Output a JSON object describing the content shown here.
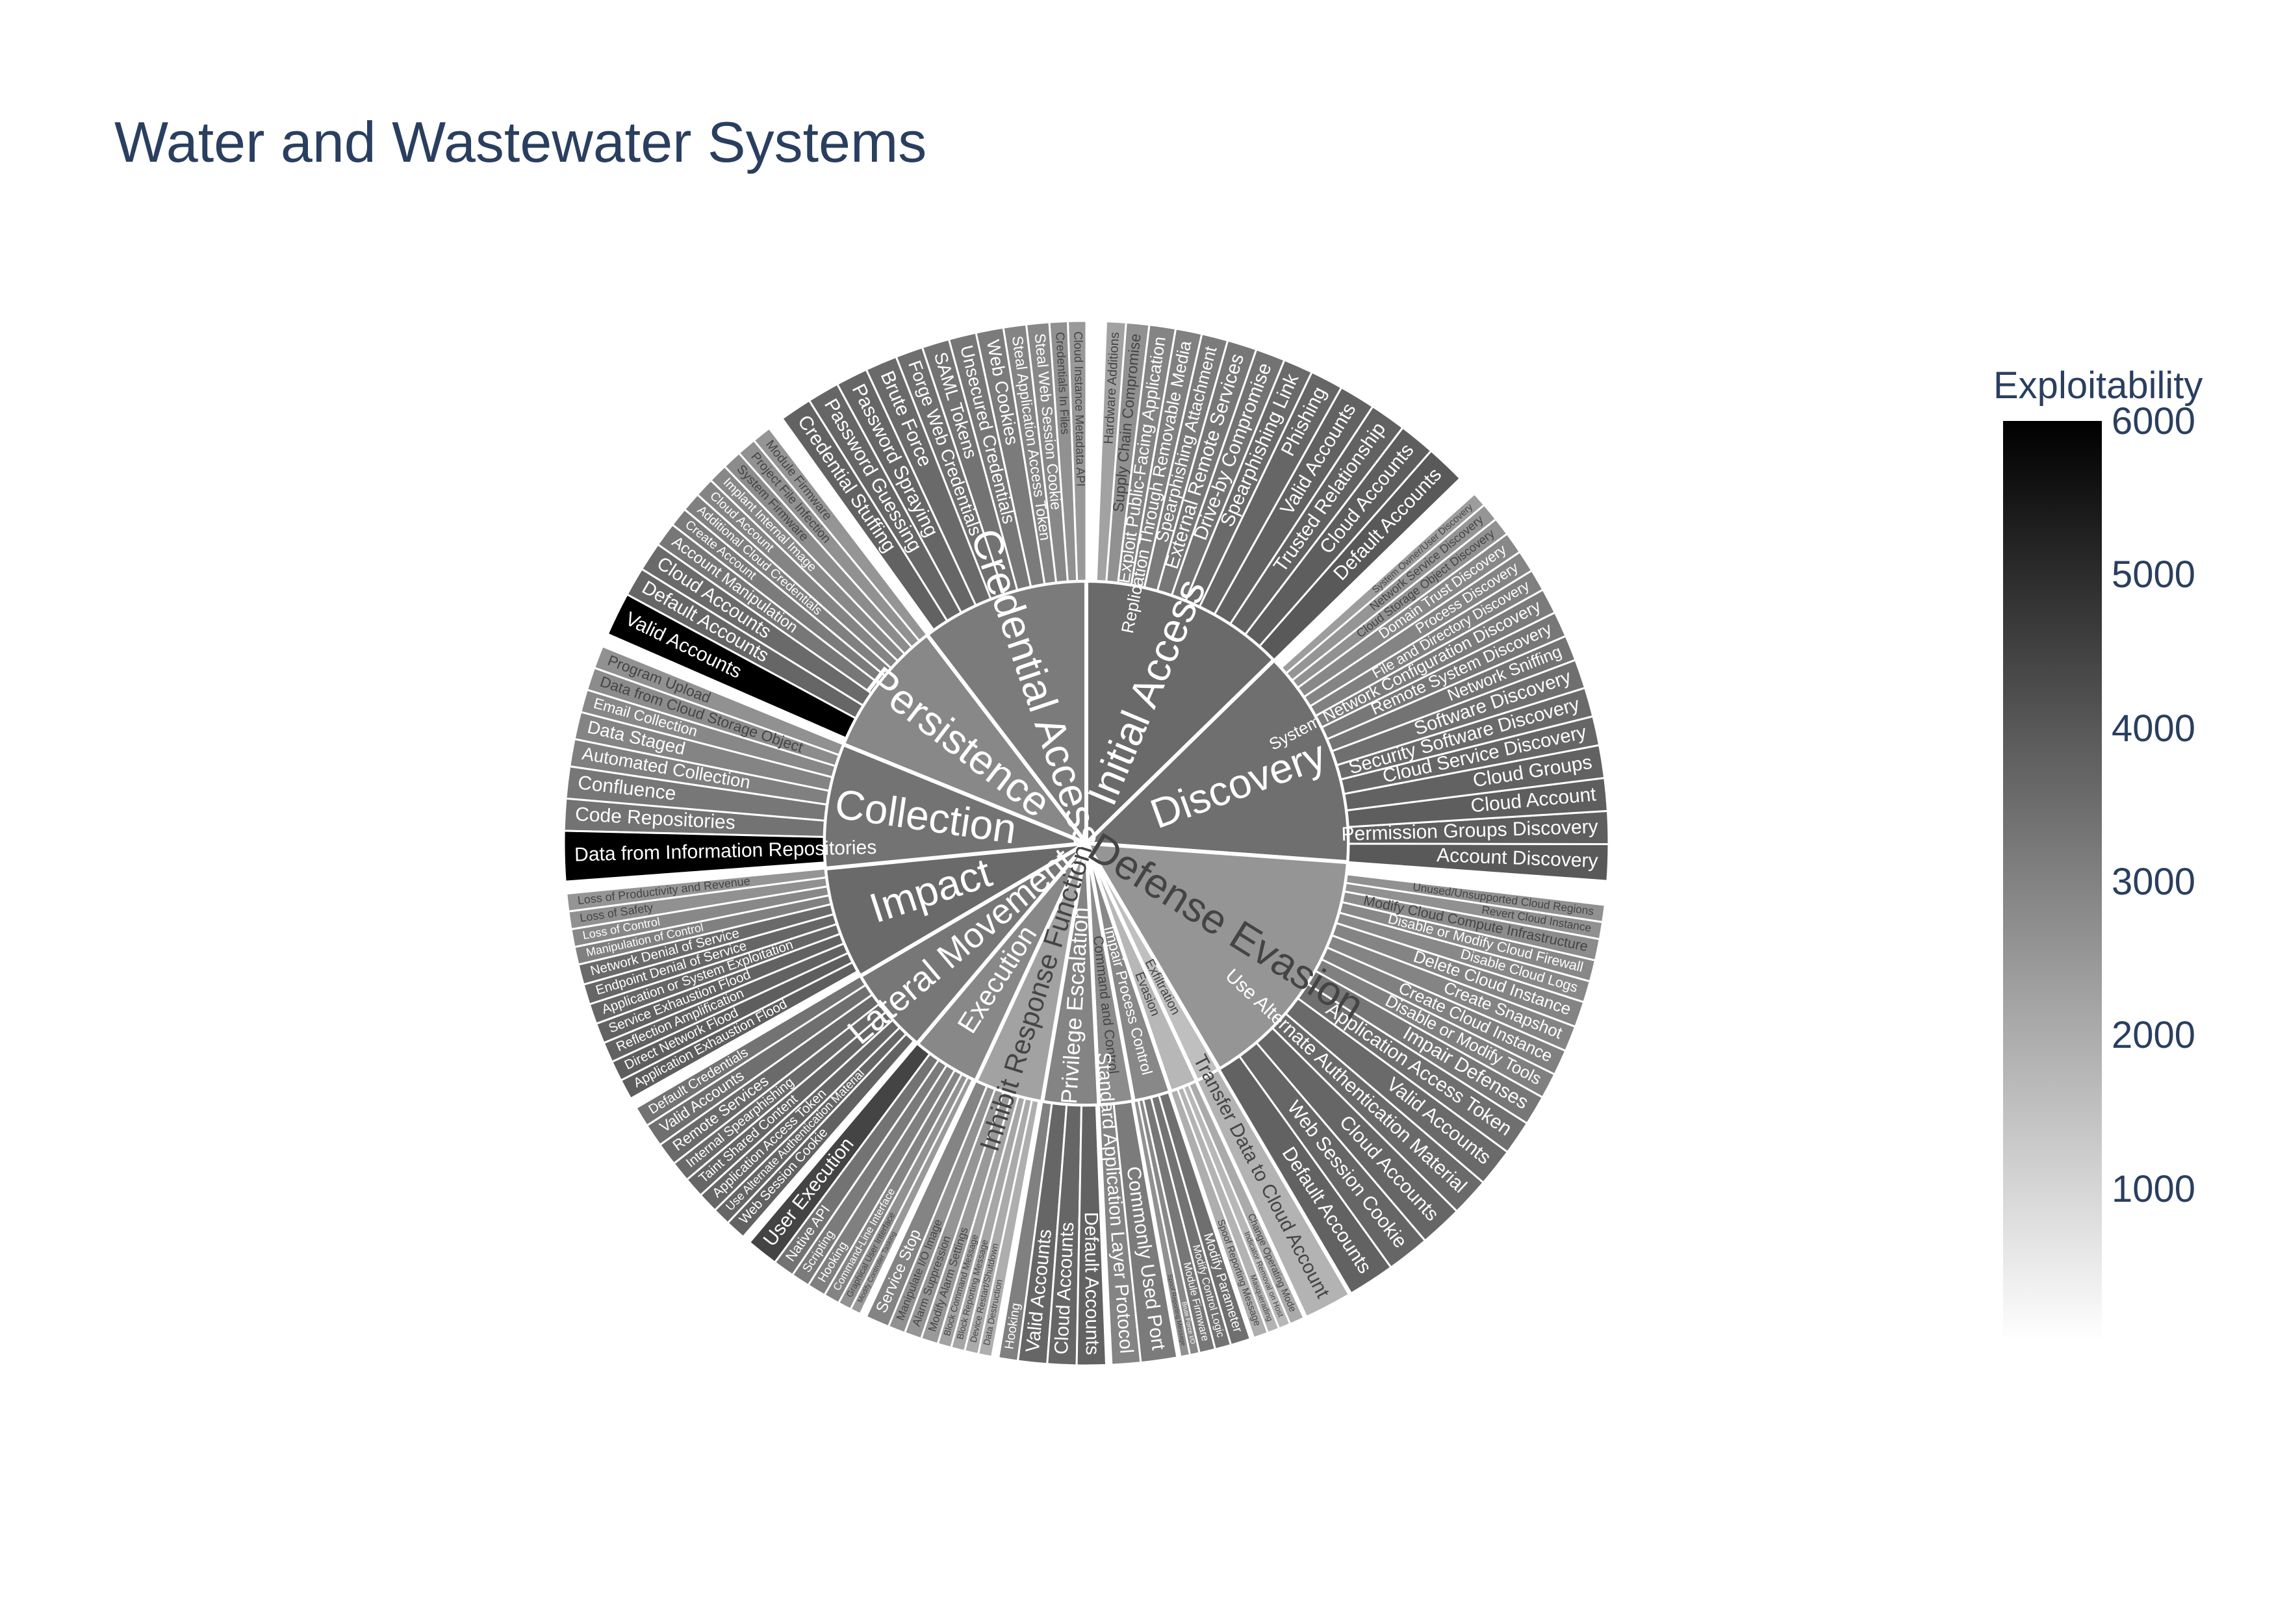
{
  "title": "Water and Wastewater Systems",
  "colorbar": {
    "title": "Exploitability",
    "range": [
      0,
      6000
    ],
    "colorscale": [
      "#ffffff",
      "#000000"
    ],
    "ticks": [
      6000,
      5000,
      4000,
      3000,
      2000,
      1000
    ]
  },
  "chart_data": {
    "type": "sunburst",
    "title": "Water and Wastewater Systems",
    "colorbar_title": "Exploitability",
    "tactics": [
      {
        "name": "Initial Access",
        "value": 3300,
        "color": 3500,
        "children": [
          {
            "name": "Default Accounts",
            "value": 60,
            "color": 3900
          },
          {
            "name": "Cloud Accounts",
            "value": 55,
            "color": 3800
          },
          {
            "name": "Trusted Relationship",
            "value": 55,
            "color": 3700
          },
          {
            "name": "Valid Accounts",
            "value": 55,
            "color": 3700
          },
          {
            "name": "Phishing",
            "value": 50,
            "color": 3600
          },
          {
            "name": "Spearphishing Link",
            "value": 45,
            "color": 3500
          },
          {
            "name": "Drive-by Compromise",
            "value": 45,
            "color": 3300
          },
          {
            "name": "External Remote Services",
            "value": 45,
            "color": 3200
          },
          {
            "name": "Spearphishing Attachment",
            "value": 40,
            "color": 3100
          },
          {
            "name": "Replication Through Removable Media",
            "value": 40,
            "color": 3000
          },
          {
            "name": "Exploit Public-Facing Application",
            "value": 40,
            "color": 2900
          },
          {
            "name": "Supply Chain Compromise",
            "value": 35,
            "color": 2600
          },
          {
            "name": "Hardware Additions",
            "value": 30,
            "color": 2200
          }
        ]
      },
      {
        "name": "Discovery",
        "value": 3500,
        "color": 3400,
        "children": [
          {
            "name": "Account Discovery",
            "value": 50,
            "color": 3900
          },
          {
            "name": "Permission Groups Discovery",
            "value": 45,
            "color": 3800
          },
          {
            "name": "Cloud Account",
            "value": 45,
            "color": 3800
          },
          {
            "name": "Cloud Groups",
            "value": 45,
            "color": 3700
          },
          {
            "name": "Cloud Service Discovery",
            "value": 40,
            "color": 3600
          },
          {
            "name": "Security Software Discovery",
            "value": 40,
            "color": 3500
          },
          {
            "name": "Software Discovery",
            "value": 40,
            "color": 3400
          },
          {
            "name": "Network Sniffing",
            "value": 35,
            "color": 3300
          },
          {
            "name": "Remote System Discovery",
            "value": 35,
            "color": 3200
          },
          {
            "name": "System Network Configuration Discovery",
            "value": 35,
            "color": 3100
          },
          {
            "name": "File and Directory Discovery",
            "value": 30,
            "color": 3000
          },
          {
            "name": "Process Discovery",
            "value": 30,
            "color": 2900
          },
          {
            "name": "Domain Trust Discovery",
            "value": 30,
            "color": 2800
          },
          {
            "name": "Cloud Storage Object Discovery",
            "value": 25,
            "color": 2600
          },
          {
            "name": "Network Service Discovery",
            "value": 25,
            "color": 2500
          },
          {
            "name": "System Owner/User Discovery",
            "value": 20,
            "color": 2300
          }
        ]
      },
      {
        "name": "Defense Evasion",
        "value": 4000,
        "color": 2500,
        "children": [
          {
            "name": "Default Accounts",
            "value": 55,
            "color": 3700
          },
          {
            "name": "Web Session Cookie",
            "value": 50,
            "color": 3600
          },
          {
            "name": "Cloud Accounts",
            "value": 50,
            "color": 3600
          },
          {
            "name": "Use Alternate Authentication Material",
            "value": 45,
            "color": 3500
          },
          {
            "name": "Valid Accounts",
            "value": 45,
            "color": 3500
          },
          {
            "name": "Application Access Token",
            "value": 40,
            "color": 3400
          },
          {
            "name": "Impair Defenses",
            "value": 35,
            "color": 3200
          },
          {
            "name": "Disable or Modify Tools",
            "value": 30,
            "color": 3000
          },
          {
            "name": "Create Cloud Instance",
            "value": 30,
            "color": 3000
          },
          {
            "name": "Create Snapshot",
            "value": 30,
            "color": 2900
          },
          {
            "name": "Delete Cloud Instance",
            "value": 30,
            "color": 2900
          },
          {
            "name": "Disable Cloud Logs",
            "value": 25,
            "color": 2800
          },
          {
            "name": "Disable or Modify Cloud Firewall",
            "value": 25,
            "color": 2800
          },
          {
            "name": "Modify Cloud Compute Infrastructure",
            "value": 25,
            "color": 2700
          },
          {
            "name": "Revert Cloud Instance",
            "value": 20,
            "color": 2600
          },
          {
            "name": "Unused/Unsupported Cloud Regions",
            "value": 20,
            "color": 2600
          }
        ]
      },
      {
        "name": "Exfiltration",
        "value": 400,
        "color": 1500,
        "children": [
          {
            "name": "Transfer Data to Cloud Account",
            "value": 20,
            "color": 1800
          }
        ]
      },
      {
        "name": "Evasion",
        "value": 450,
        "color": 1700,
        "children": [
          {
            "name": "Spoof Reporting Message",
            "value": 15,
            "color": 1900
          },
          {
            "name": "Masquerading",
            "value": 12,
            "color": 1800
          },
          {
            "name": "Indicator Removal on Host",
            "value": 12,
            "color": 1700
          },
          {
            "name": "Change Operating Mode",
            "value": 15,
            "color": 2000
          }
        ]
      },
      {
        "name": "Impair Process Control",
        "value": 600,
        "color": 2800,
        "children": [
          {
            "name": "Spoof Reporting Message",
            "value": 12,
            "color": 2600
          },
          {
            "name": "Brute Force I/O",
            "value": 12,
            "color": 2800
          },
          {
            "name": "Module Firmware",
            "value": 20,
            "color": 3200
          },
          {
            "name": "Modify Control Logic",
            "value": 20,
            "color": 3300
          },
          {
            "name": "Modify Parameter",
            "value": 25,
            "color": 3400
          }
        ]
      },
      {
        "name": "Command and Control",
        "value": 550,
        "color": 2700,
        "children": [
          {
            "name": "Standard Application Layer Protocol",
            "value": 20,
            "color": 2900
          },
          {
            "name": "Commonly Used Port",
            "value": 25,
            "color": 3100
          }
        ]
      },
      {
        "name": "Privilege Escalation",
        "value": 900,
        "color": 2900,
        "children": [
          {
            "name": "Hooking",
            "value": 20,
            "color": 3000
          },
          {
            "name": "Valid Accounts",
            "value": 30,
            "color": 3600
          },
          {
            "name": "Cloud Accounts",
            "value": 30,
            "color": 3600
          },
          {
            "name": "Default Accounts",
            "value": 30,
            "color": 3700
          }
        ]
      },
      {
        "name": "Inhibit Response Function",
        "value": 1100,
        "color": 2200,
        "children": [
          {
            "name": "Service Stop",
            "value": 35,
            "color": 2900
          },
          {
            "name": "Manipulate I/O Image",
            "value": 25,
            "color": 2600
          },
          {
            "name": "Alarm Suppression",
            "value": 25,
            "color": 2500
          },
          {
            "name": "Modify Alarm Settings",
            "value": 25,
            "color": 2400
          },
          {
            "name": "Block Command Message",
            "value": 20,
            "color": 2200
          },
          {
            "name": "Block Reporting Message",
            "value": 20,
            "color": 2100
          },
          {
            "name": "Device Restart/Shutdown",
            "value": 20,
            "color": 2000
          },
          {
            "name": "Data Destruction",
            "value": 20,
            "color": 1900
          }
        ]
      },
      {
        "name": "Execution",
        "value": 1100,
        "color": 2800,
        "children": [
          {
            "name": "User Execution",
            "value": 60,
            "color": 4400
          },
          {
            "name": "Native API",
            "value": 40,
            "color": 3300
          },
          {
            "name": "Scripting",
            "value": 35,
            "color": 3100
          },
          {
            "name": "Hooking",
            "value": 35,
            "color": 3000
          },
          {
            "name": "Command-Line Interface",
            "value": 30,
            "color": 2900
          },
          {
            "name": "Graphical User Interface",
            "value": 25,
            "color": 2600
          },
          {
            "name": "Modify Controller Tasking",
            "value": 20,
            "color": 2400
          }
        ]
      },
      {
        "name": "Lateral Movement",
        "value": 1400,
        "color": 3200,
        "children": [
          {
            "name": "Default Credentials",
            "value": 40,
            "color": 3300
          },
          {
            "name": "Valid Accounts",
            "value": 45,
            "color": 3400
          },
          {
            "name": "Remote Services",
            "value": 45,
            "color": 3500
          },
          {
            "name": "Internal Spearphishing",
            "value": 40,
            "color": 3500
          },
          {
            "name": "Taint Shared Content",
            "value": 40,
            "color": 3600
          },
          {
            "name": "Application Access Token",
            "value": 40,
            "color": 3600
          },
          {
            "name": "Use Alternate Authentication Material",
            "value": 35,
            "color": 3600
          },
          {
            "name": "Web Session Cookie",
            "value": 40,
            "color": 3700
          }
        ]
      },
      {
        "name": "Impact",
        "value": 1800,
        "color": 3500,
        "children": [
          {
            "name": "Loss of Productivity and Revenue",
            "value": 35,
            "color": 2500
          },
          {
            "name": "Loss of Safety",
            "value": 35,
            "color": 2600
          },
          {
            "name": "Loss of Control",
            "value": 35,
            "color": 2800
          },
          {
            "name": "Manipulation of Control",
            "value": 35,
            "color": 3000
          },
          {
            "name": "Network Denial of Service",
            "value": 40,
            "color": 3500
          },
          {
            "name": "Endpoint Denial of Service",
            "value": 40,
            "color": 3600
          },
          {
            "name": "Application or System Exploitation",
            "value": 40,
            "color": 3600
          },
          {
            "name": "Service Exhaustion Flood",
            "value": 40,
            "color": 3700
          },
          {
            "name": "Reflection Amplification",
            "value": 40,
            "color": 3700
          },
          {
            "name": "Direct Network Flood",
            "value": 40,
            "color": 3800
          },
          {
            "name": "Application Exhaustion Flood",
            "value": 40,
            "color": 3800
          }
        ]
      },
      {
        "name": "Collection",
        "value": 2000,
        "color": 3300,
        "children": [
          {
            "name": "Program Upload",
            "value": 25,
            "color": 2600
          },
          {
            "name": "Data from Cloud Storage Object",
            "value": 25,
            "color": 2700
          },
          {
            "name": "Email Collection",
            "value": 25,
            "color": 2800
          },
          {
            "name": "Data Staged",
            "value": 30,
            "color": 2900
          },
          {
            "name": "Automated Collection",
            "value": 30,
            "color": 3000
          },
          {
            "name": "Confluence",
            "value": 35,
            "color": 3200
          },
          {
            "name": "Code Repositories",
            "value": 35,
            "color": 3300
          },
          {
            "name": "Data from Information Repositories",
            "value": 55,
            "color": 6000
          }
        ]
      },
      {
        "name": "Persistence",
        "value": 2200,
        "color": 2800,
        "children": [
          {
            "name": "Module Firmware",
            "value": 20,
            "color": 2500
          },
          {
            "name": "Project File Infection",
            "value": 20,
            "color": 2600
          },
          {
            "name": "System Firmware",
            "value": 20,
            "color": 2700
          },
          {
            "name": "Implant Internal Image",
            "value": 20,
            "color": 2800
          },
          {
            "name": "Cloud Account",
            "value": 20,
            "color": 2900
          },
          {
            "name": "Additional Cloud Credentials",
            "value": 20,
            "color": 3000
          },
          {
            "name": "Create Account",
            "value": 20,
            "color": 3100
          },
          {
            "name": "Account Manipulation",
            "value": 25,
            "color": 3200
          },
          {
            "name": "Cloud Accounts",
            "value": 30,
            "color": 3500
          },
          {
            "name": "Default Accounts",
            "value": 30,
            "color": 3600
          },
          {
            "name": "Valid Accounts",
            "value": 45,
            "color": 6000
          }
        ]
      },
      {
        "name": "Credential Access",
        "value": 2700,
        "color": 3100,
        "children": [
          {
            "name": "Cloud Instance Metadata API",
            "value": 20,
            "color": 2400
          },
          {
            "name": "Credentials In Files",
            "value": 20,
            "color": 2600
          },
          {
            "name": "Steal Web Session Cookie",
            "value": 25,
            "color": 2800
          },
          {
            "name": "Steal Application Access Token",
            "value": 25,
            "color": 2900
          },
          {
            "name": "Web Cookies",
            "value": 30,
            "color": 3100
          },
          {
            "name": "Unsecured Credentials",
            "value": 30,
            "color": 3200
          },
          {
            "name": "SAML Tokens",
            "value": 30,
            "color": 3300
          },
          {
            "name": "Forge Web Credentials",
            "value": 30,
            "color": 3400
          },
          {
            "name": "Brute Force",
            "value": 35,
            "color": 3500
          },
          {
            "name": "Password Spraying",
            "value": 35,
            "color": 3600
          },
          {
            "name": "Password Guessing",
            "value": 35,
            "color": 3600
          },
          {
            "name": "Credential Stuffing",
            "value": 35,
            "color": 3700
          }
        ]
      }
    ]
  }
}
